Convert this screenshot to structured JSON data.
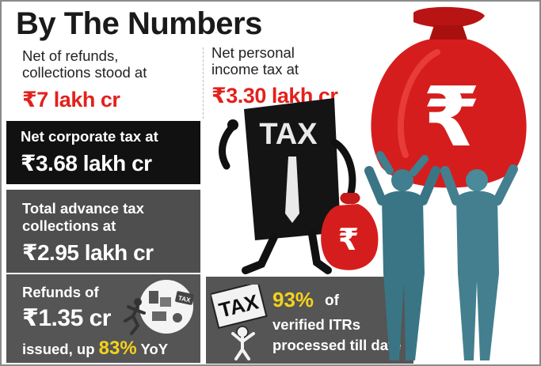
{
  "title": "By The Numbers",
  "net_collections": {
    "label_line1": "Net of refunds,",
    "label_line2": "collections stood at",
    "amount": "₹7 lakh cr"
  },
  "personal_income_tax": {
    "label_line1": "Net personal",
    "label_line2": "income tax at",
    "amount": "₹3.30 lakh cr"
  },
  "corporate_tax": {
    "label": "Net corporate tax at",
    "amount": "₹3.68 lakh cr"
  },
  "advance_tax": {
    "label_line1": "Total advance tax",
    "label_line2": "collections at",
    "amount": "₹2.95 lakh cr"
  },
  "refunds": {
    "label": "Refunds of",
    "amount": "₹1.35 cr",
    "foot_prefix": "issued, up",
    "foot_pct": "83%",
    "foot_suffix": "YoY"
  },
  "itr": {
    "pct": "93%",
    "of": "of",
    "line2": "verified ITRs",
    "line3": "processed till date"
  },
  "illustration": {
    "taxman_label": "TAX",
    "small_bag_symbol": "₹",
    "big_bag_symbol": "₹",
    "taxbox_label": "TAX",
    "refund_tag": "TAX"
  },
  "colors": {
    "accent_red": "#e3211c",
    "highlight_yellow": "#f6d21a",
    "panel_black": "#111111",
    "panel_gray": "#555555",
    "figure_teal": "#3f7f8f"
  }
}
